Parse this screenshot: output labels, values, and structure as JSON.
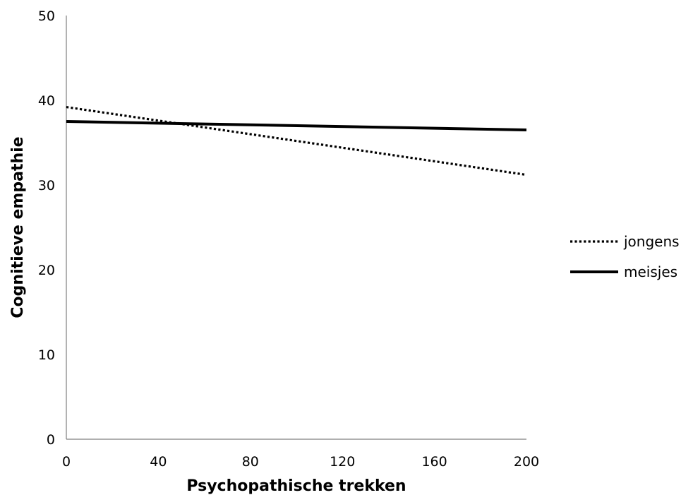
{
  "chart_data": {
    "type": "line",
    "title": "",
    "xlabel": "Psychopathische trekken",
    "ylabel": "Cognitieve empathie",
    "xlim": [
      0,
      200
    ],
    "ylim": [
      0,
      50
    ],
    "xticks": [
      "0",
      "40",
      "80",
      "120",
      "160",
      "200"
    ],
    "yticks": [
      "0",
      "10",
      "20",
      "30",
      "40",
      "50"
    ],
    "grid": false,
    "legend_position": "right",
    "series": [
      {
        "name": "jongens",
        "style": "dotted",
        "color": "#000000",
        "x": [
          0,
          200
        ],
        "y": [
          39.2,
          31.2
        ]
      },
      {
        "name": "meisjes",
        "style": "solid",
        "color": "#000000",
        "x": [
          0,
          200
        ],
        "y": [
          37.5,
          36.5
        ]
      }
    ]
  }
}
